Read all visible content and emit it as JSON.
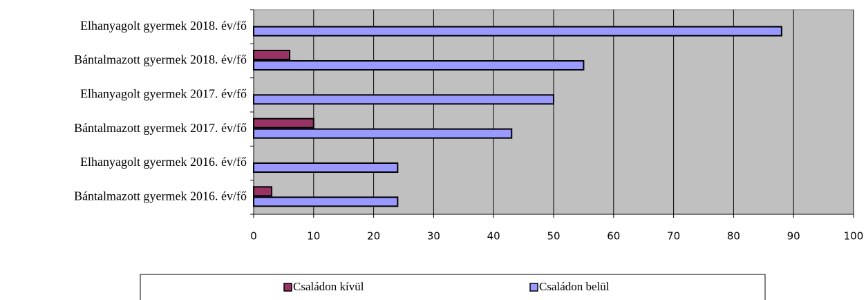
{
  "chart_data": {
    "type": "bar",
    "orientation": "horizontal",
    "categories": [
      "Elhanyagolt gyermek 2018. év/fő",
      "Bántalmazott gyermek 2018. év/fő",
      "Elhanyagolt gyermek 2017. év/fő",
      "Bántalmazott gyermek 2017. év/fő",
      "Elhanyagolt gyermek 2016. év/fő",
      "Bántalmazott gyermek 2016. év/fő"
    ],
    "series": [
      {
        "name": "Családon kívül",
        "color": "#993366",
        "values": [
          0,
          6,
          0,
          10,
          0,
          3
        ]
      },
      {
        "name": "Családon belül",
        "color": "#9999ff",
        "values": [
          88,
          55,
          50,
          43,
          24,
          24
        ]
      }
    ],
    "xlim": [
      0,
      100
    ],
    "xticks": [
      0,
      10,
      20,
      30,
      40,
      50,
      60,
      70,
      80,
      90,
      100
    ],
    "grid": true,
    "legend": "bottom"
  }
}
